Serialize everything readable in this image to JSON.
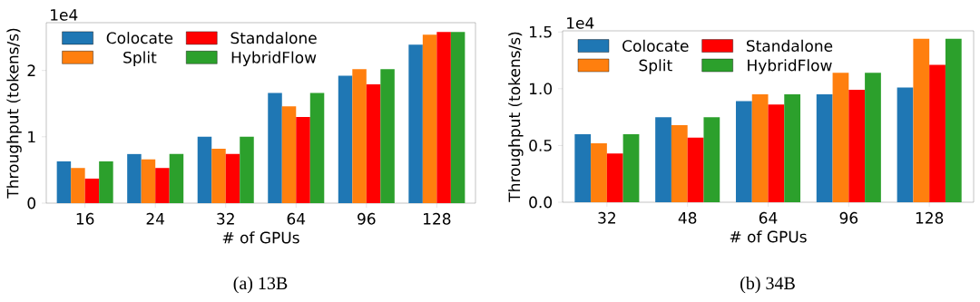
{
  "chart_data": [
    {
      "type": "bar",
      "title": "(a) 13B",
      "xlabel": "# of GPUs",
      "ylabel": "Throughput (tokens/s)",
      "annotations": [
        "1e4"
      ],
      "categories": [
        "16",
        "24",
        "32",
        "64",
        "96",
        "128"
      ],
      "series": [
        {
          "name": "Colocate",
          "color": "#1f77b4",
          "values": [
            0.63,
            0.74,
            1.0,
            1.66,
            1.92,
            2.39
          ]
        },
        {
          "name": "Split",
          "color": "#ff7f0e",
          "values": [
            0.53,
            0.66,
            0.82,
            1.46,
            2.02,
            2.54
          ]
        },
        {
          "name": "Standalone",
          "color": "#ff0000",
          "values": [
            0.37,
            0.53,
            0.74,
            1.3,
            1.79,
            2.58
          ]
        },
        {
          "name": "HybridFlow",
          "color": "#2ca02c",
          "values": [
            0.63,
            0.74,
            1.0,
            1.66,
            2.02,
            2.58
          ]
        }
      ],
      "ylim": [
        0,
        2.72
      ],
      "yticks": [
        0,
        1,
        2
      ],
      "legend": "top left"
    },
    {
      "type": "bar",
      "title": "(b) 34B",
      "xlabel": "# of GPUs",
      "ylabel": "Throughput (tokens/s)",
      "annotations": [
        "1e4"
      ],
      "categories": [
        "32",
        "48",
        "64",
        "96",
        "128"
      ],
      "series": [
        {
          "name": "Colocate",
          "color": "#1f77b4",
          "values": [
            0.6,
            0.75,
            0.89,
            0.95,
            1.01
          ]
        },
        {
          "name": "Split",
          "color": "#ff7f0e",
          "values": [
            0.52,
            0.68,
            0.95,
            1.14,
            1.44
          ]
        },
        {
          "name": "Standalone",
          "color": "#ff0000",
          "values": [
            0.43,
            0.57,
            0.86,
            0.99,
            1.21
          ]
        },
        {
          "name": "HybridFlow",
          "color": "#2ca02c",
          "values": [
            0.6,
            0.75,
            0.95,
            1.14,
            1.44
          ]
        }
      ],
      "ylim": [
        0,
        1.51
      ],
      "yticks": [
        {
          "value": 0,
          "label": "0.0"
        },
        {
          "value": 0.5,
          "label": "0.5"
        },
        {
          "value": 1.0,
          "label": "1.0"
        },
        {
          "value": 1.5,
          "label": "1.5"
        }
      ],
      "legend": "top left"
    }
  ]
}
